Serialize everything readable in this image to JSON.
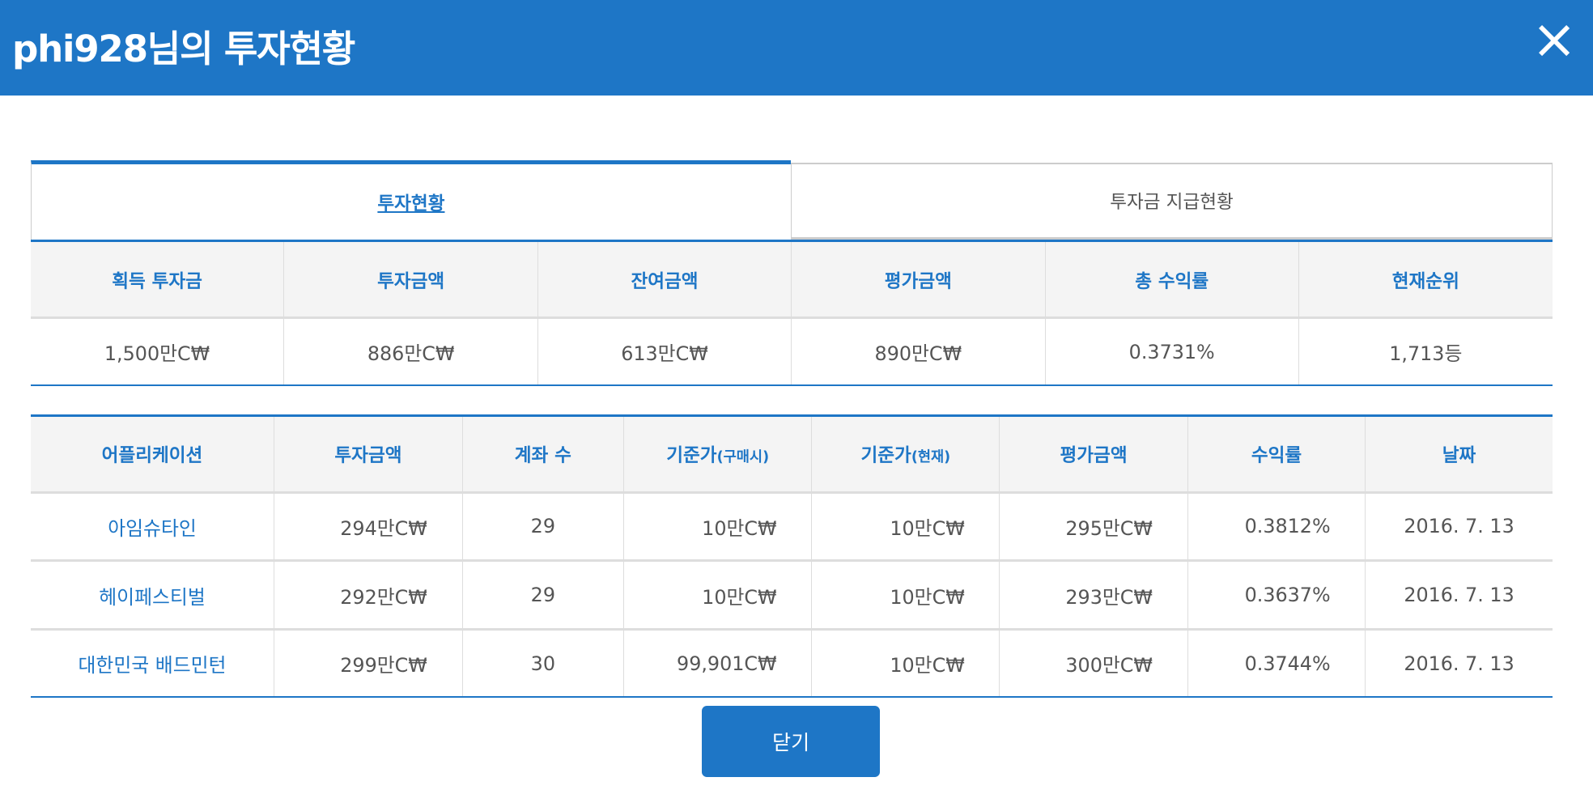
{
  "header": {
    "title": "phi928님의 투자현황",
    "close_icon": "close-icon"
  },
  "tabs": [
    {
      "label": "투자현황",
      "active": true
    },
    {
      "label": "투자금 지급현황",
      "active": false
    }
  ],
  "summary": {
    "headers": [
      "획득 투자금",
      "투자금액",
      "잔여금액",
      "평가금액",
      "총 수익률",
      "현재순위"
    ],
    "values": [
      "1,500만C₩",
      "886만C₩",
      "613만C₩",
      "890만C₩",
      "0.3731%",
      "1,713등"
    ]
  },
  "detail": {
    "headers": [
      "어플리케이션",
      "투자금액",
      "계좌 수",
      "기준가",
      "(구매시)",
      "기준가",
      "(현재)",
      "평가금액",
      "수익률",
      "날짜"
    ],
    "rows": [
      [
        "아임슈타인",
        "294만C₩",
        "29",
        "10만C₩",
        "10만C₩",
        "295만C₩",
        "0.3812%",
        "2016. 7. 13"
      ],
      [
        "헤이페스티벌",
        "292만C₩",
        "29",
        "10만C₩",
        "10만C₩",
        "293만C₩",
        "0.3637%",
        "2016. 7. 13"
      ],
      [
        "대한민국 배드민턴",
        "299만C₩",
        "30",
        "99,901C₩",
        "10만C₩",
        "300만C₩",
        "0.3744%",
        "2016. 7. 13"
      ]
    ]
  },
  "close_button": "닫기",
  "colors": {
    "brand": "#1e76c6",
    "header_bg": "#f4f4f4"
  }
}
